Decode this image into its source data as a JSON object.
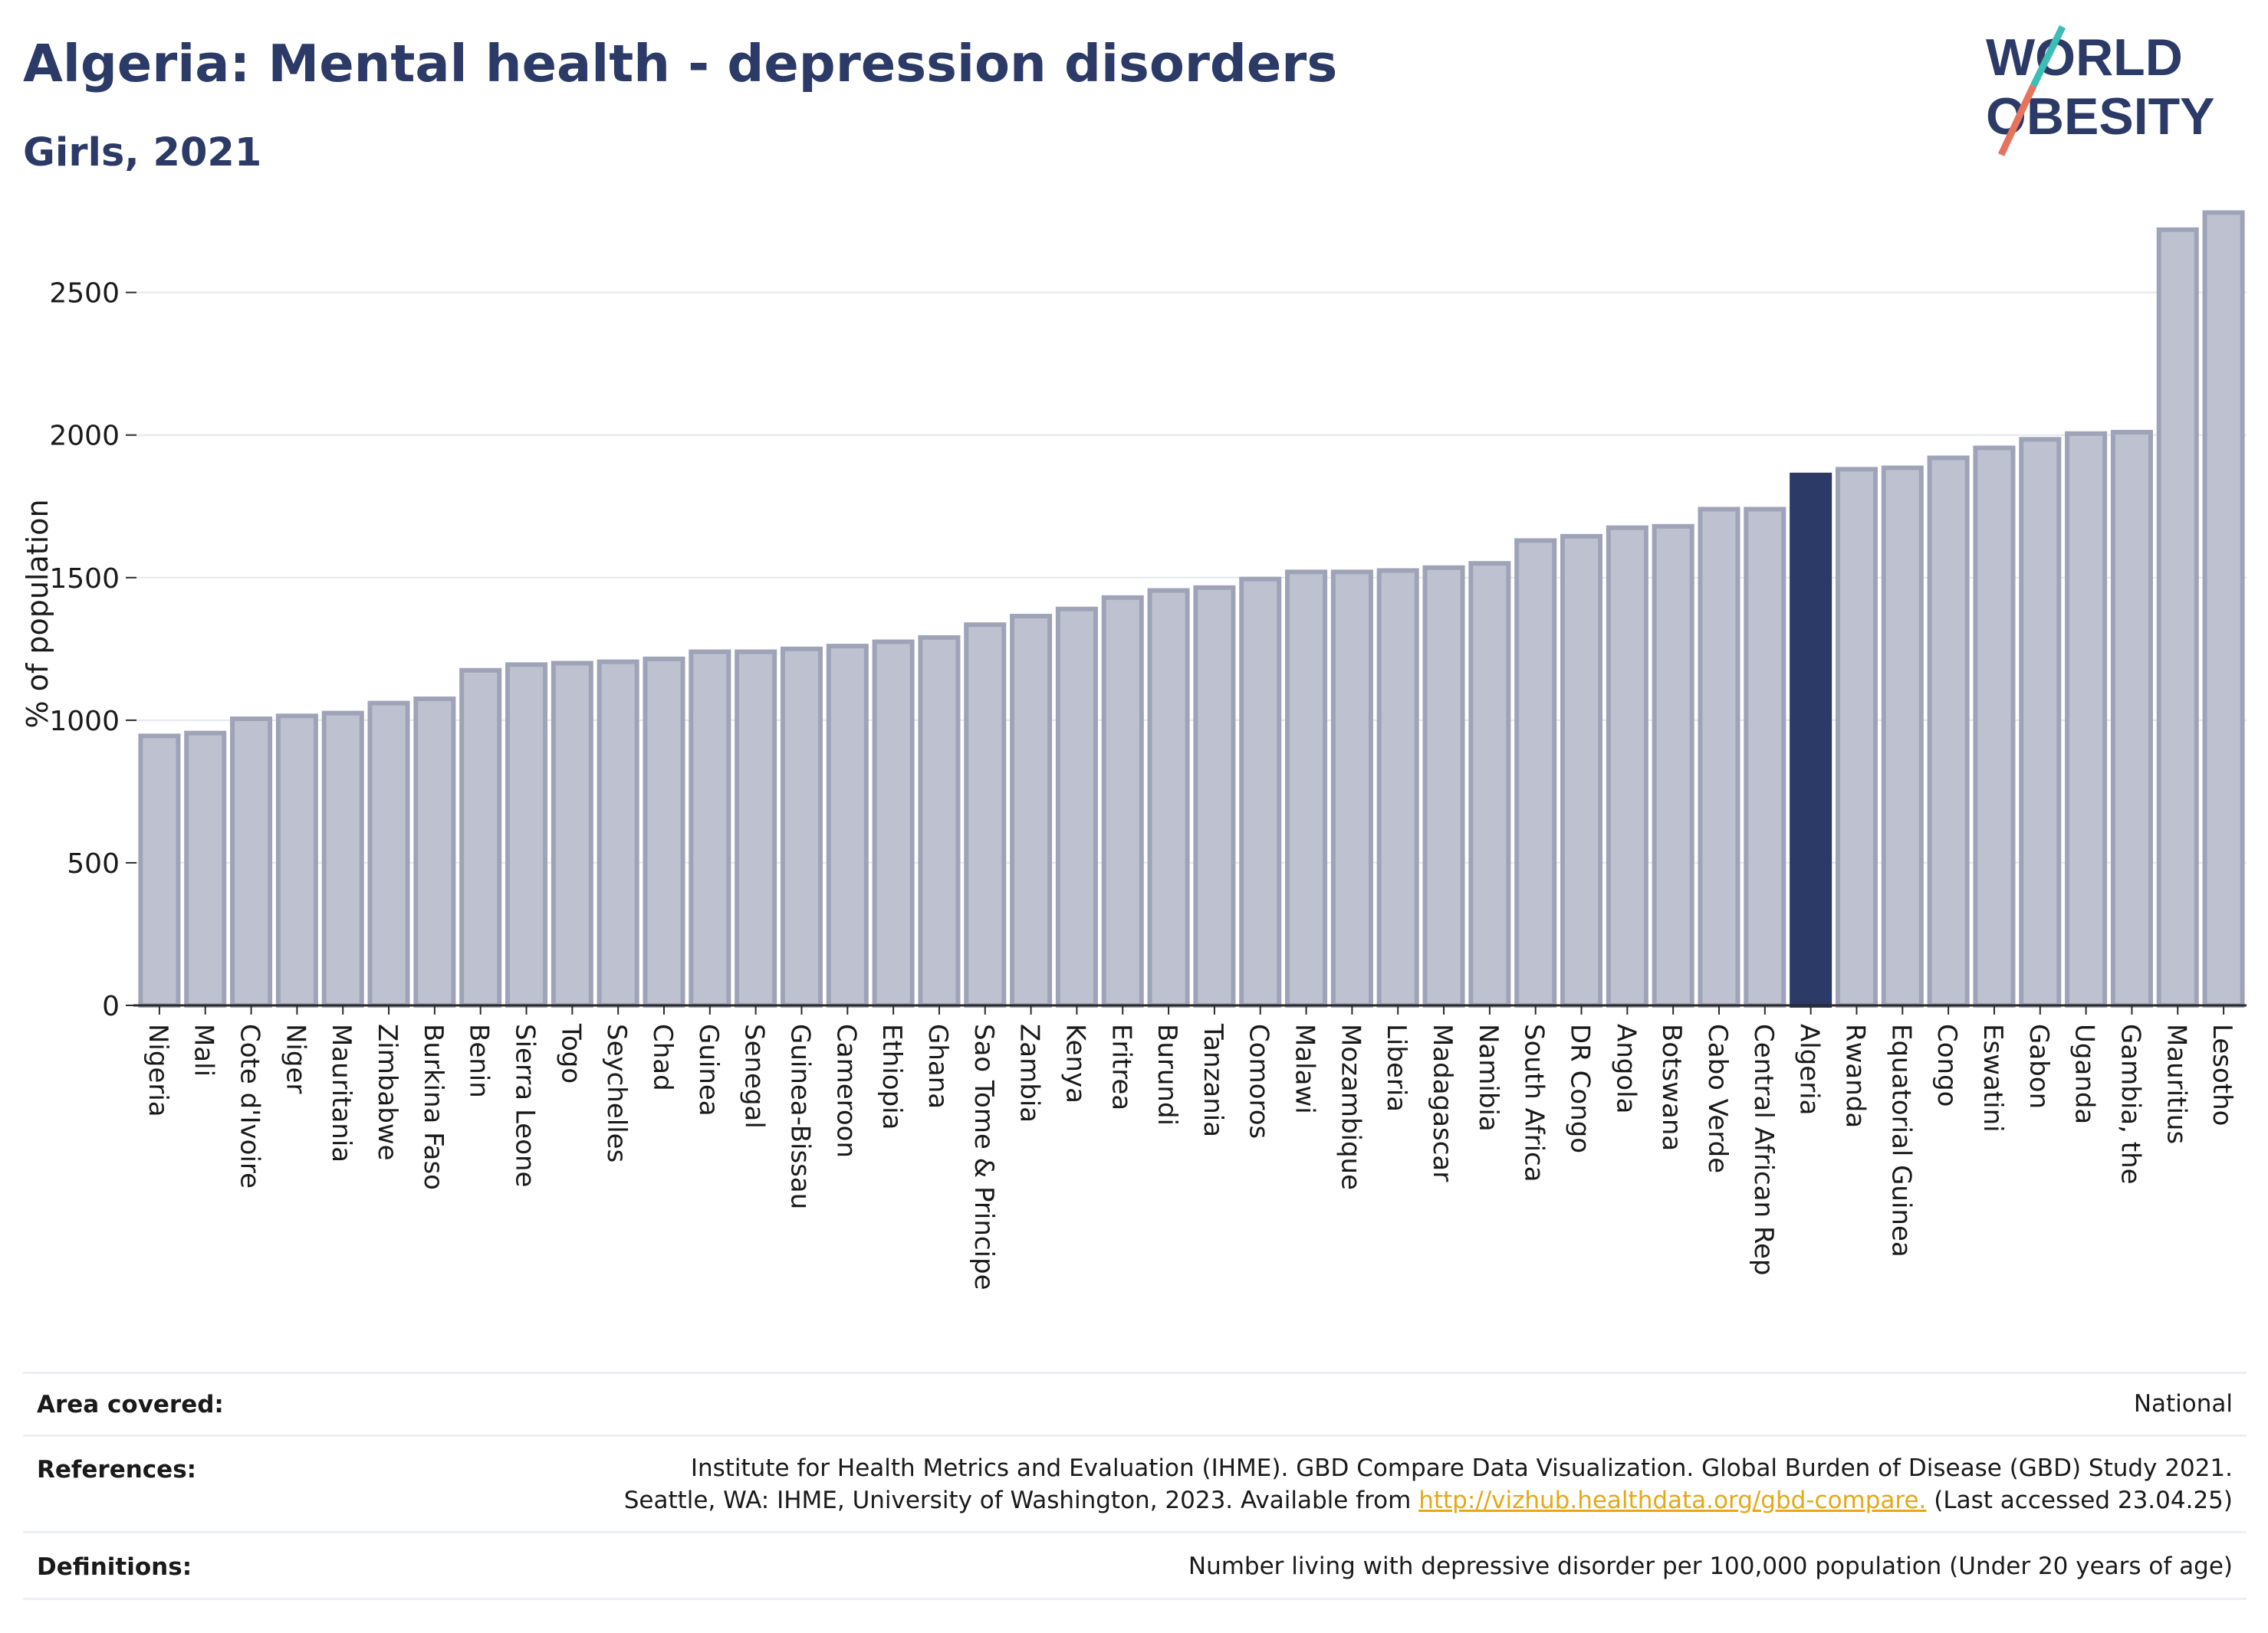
{
  "header": {
    "title": "Algeria: Mental health - depression disorders",
    "subtitle": "Girls, 2021",
    "logo_line1": "WORLD",
    "logo_line2": "OBESITY"
  },
  "colors": {
    "title": "#2b3a67",
    "bar_default": "#bec2d0",
    "bar_default_border": "#9ea3b7",
    "bar_highlight": "#2b3a67",
    "grid": "#e6e8ee",
    "logo_slash_top": "#3dbdb5",
    "logo_slash_bottom": "#e8735d"
  },
  "chart_data": {
    "type": "bar",
    "ylabel": "% of population",
    "ylim": [
      0,
      2800
    ],
    "yticks": [
      0,
      500,
      1000,
      1500,
      2000,
      2500
    ],
    "grid": true,
    "highlight": "Algeria",
    "categories": [
      "Nigeria",
      "Mali",
      "Cote d'Ivoire",
      "Niger",
      "Mauritania",
      "Zimbabwe",
      "Burkina Faso",
      "Benin",
      "Sierra Leone",
      "Togo",
      "Seychelles",
      "Chad",
      "Guinea",
      "Senegal",
      "Guinea-Bissau",
      "Cameroon",
      "Ethiopia",
      "Ghana",
      "Sao Tome & Principe",
      "Zambia",
      "Kenya",
      "Eritrea",
      "Burundi",
      "Tanzania",
      "Comoros",
      "Malawi",
      "Mozambique",
      "Liberia",
      "Madagascar",
      "Namibia",
      "South Africa",
      "DR Congo",
      "Angola",
      "Botswana",
      "Cabo Verde",
      "Central African Rep",
      "Algeria",
      "Rwanda",
      "Equatorial Guinea",
      "Congo",
      "Eswatini",
      "Gabon",
      "Uganda",
      "Gambia, the",
      "Mauritius",
      "Lesotho"
    ],
    "values": [
      945,
      955,
      1005,
      1015,
      1025,
      1060,
      1075,
      1175,
      1195,
      1200,
      1205,
      1215,
      1240,
      1240,
      1250,
      1260,
      1275,
      1290,
      1335,
      1365,
      1390,
      1430,
      1455,
      1465,
      1495,
      1520,
      1520,
      1525,
      1535,
      1550,
      1630,
      1645,
      1675,
      1680,
      1740,
      1740,
      1860,
      1880,
      1885,
      1920,
      1955,
      1985,
      2005,
      2010,
      2720,
      2780
    ]
  },
  "footer": {
    "area_label": "Area covered:",
    "area_value": "National",
    "references_label": "References:",
    "references_line1": "Institute for Health Metrics and Evaluation (IHME). GBD Compare Data Visualization. Global Burden of Disease (GBD) Study 2021.",
    "references_line2_pre": "Seattle, WA: IHME, University of Washington, 2023. Available from ",
    "references_link": "http://vizhub.healthdata.org/gbd-compare.",
    "references_line2_post": " (Last accessed 23.04.25)",
    "definitions_label": "Definitions:",
    "definitions_value": "Number living with depressive disorder per 100,000 population (Under 20 years of age)"
  }
}
